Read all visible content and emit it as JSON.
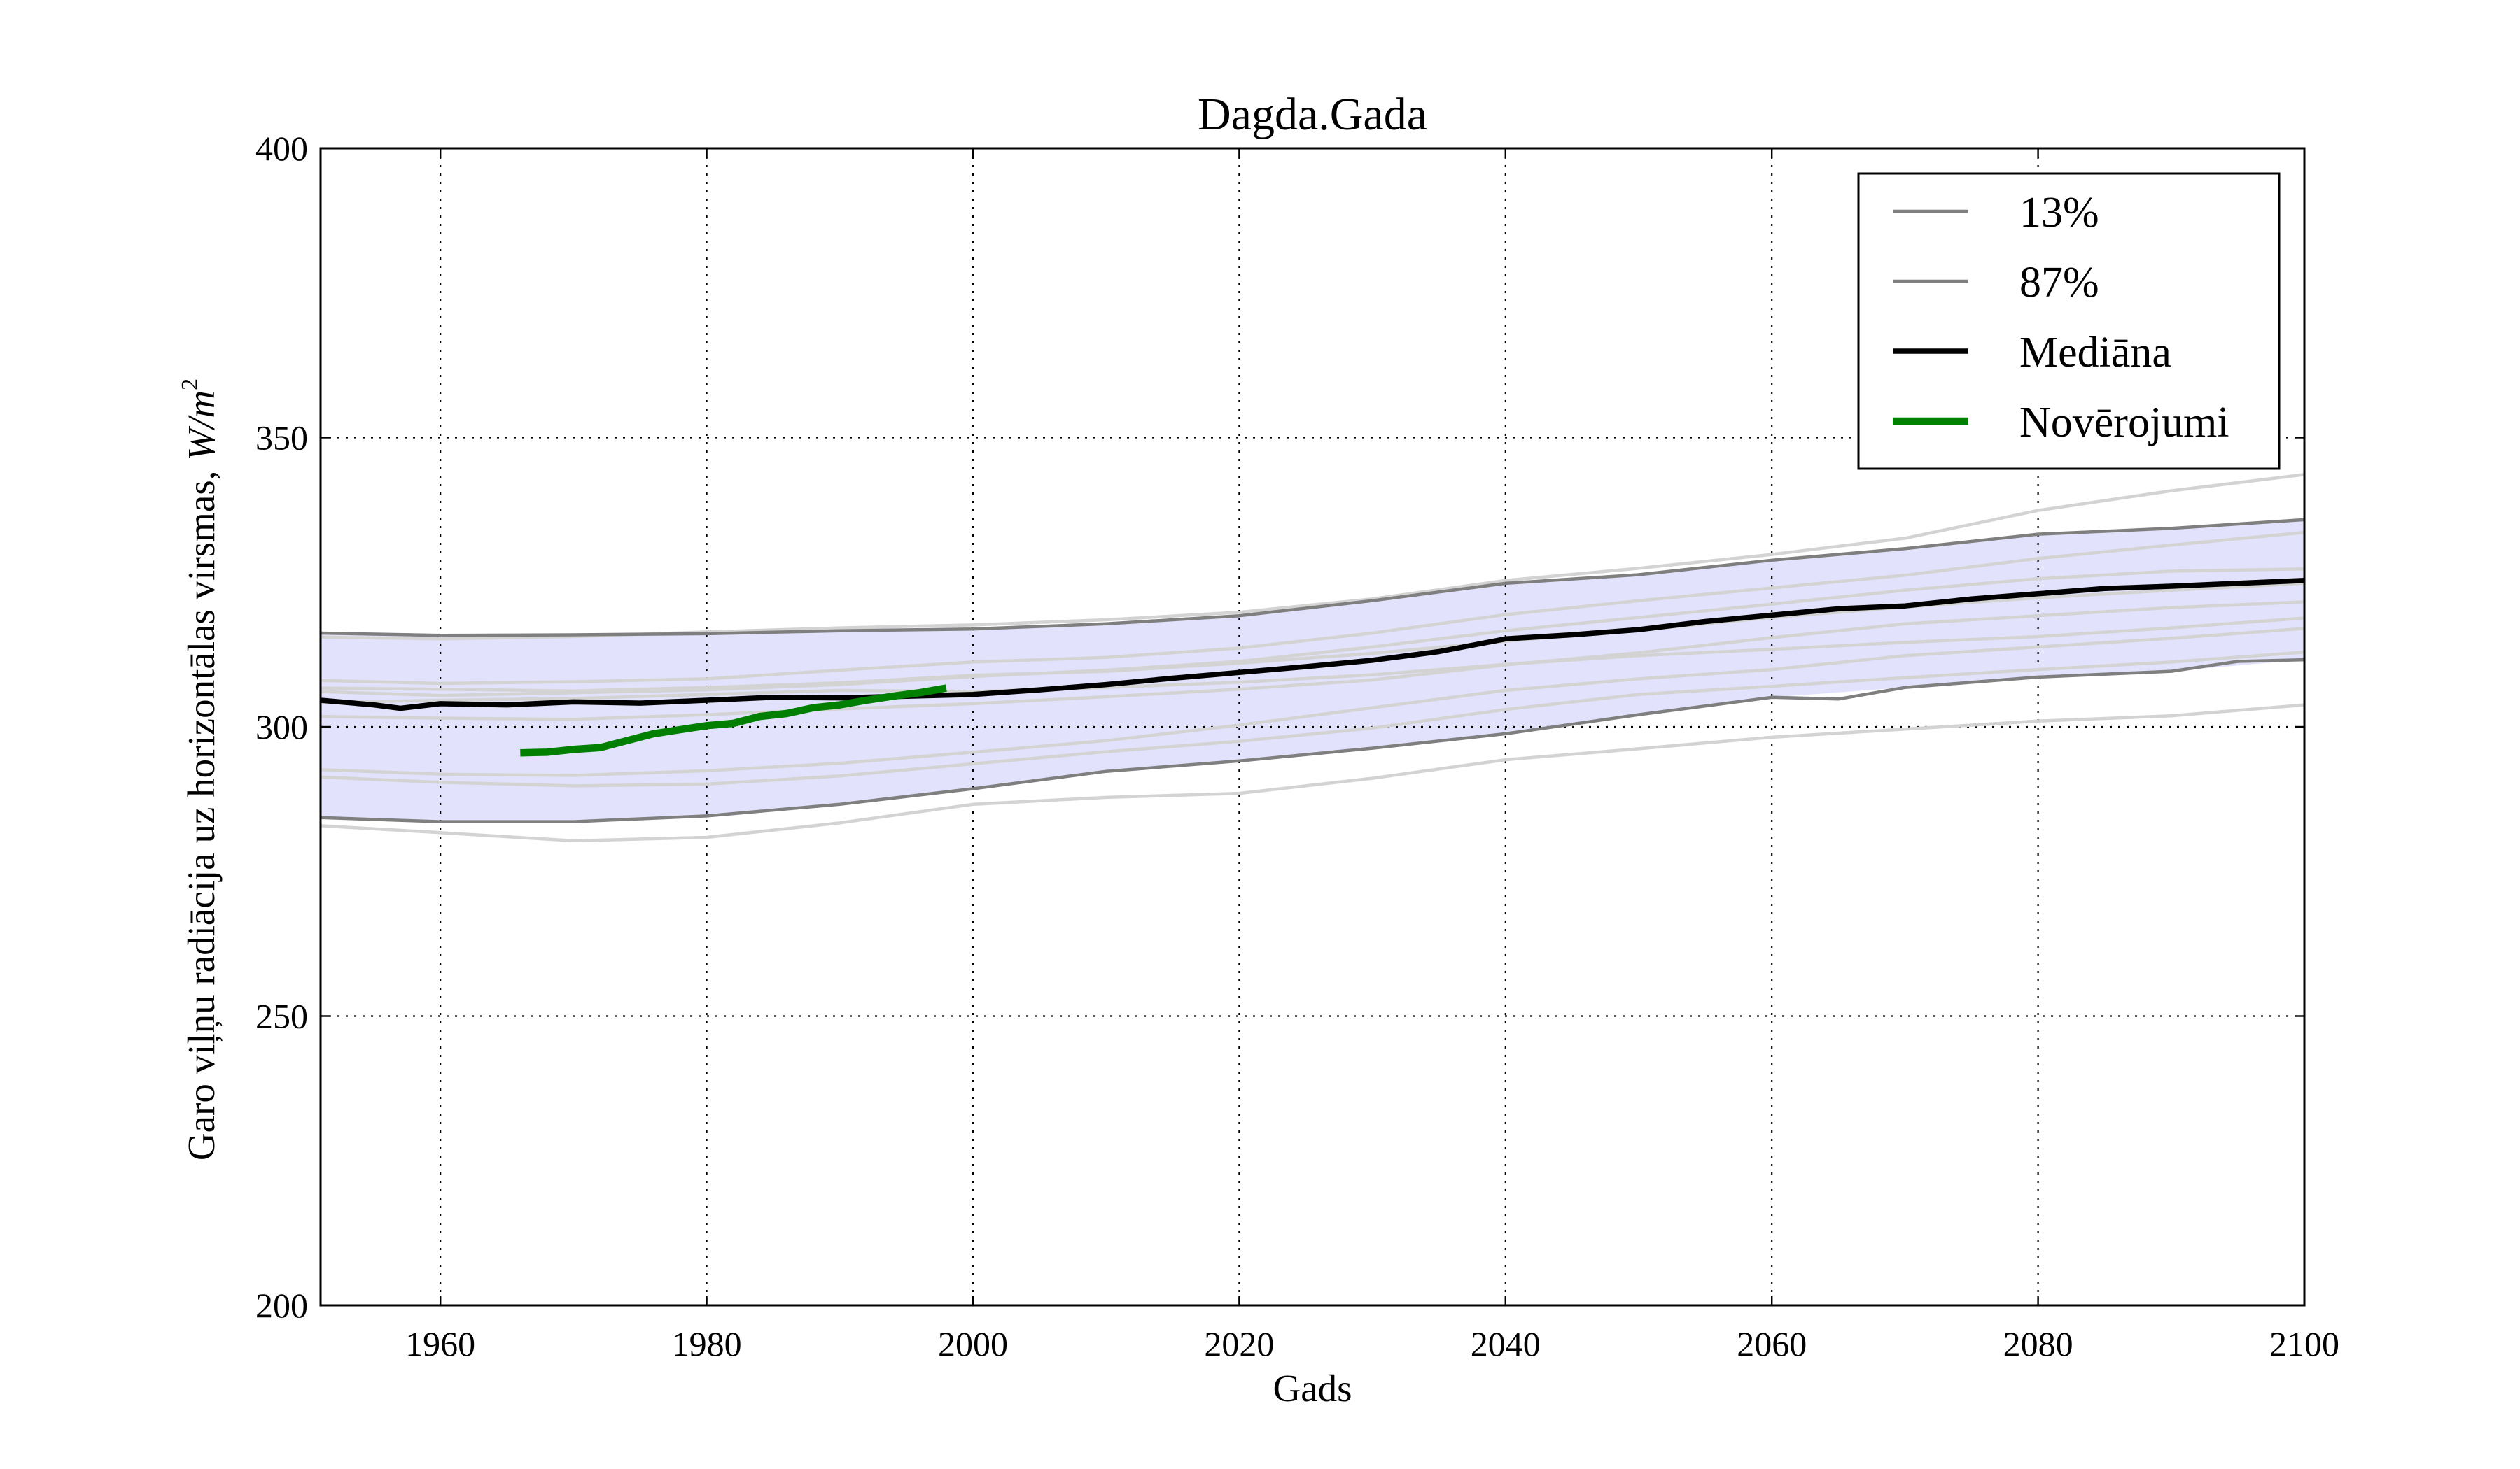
{
  "chart_data": {
    "type": "line",
    "title": "Dagda.Gada",
    "xlabel": "Gads",
    "ylabel": "Garo viļņu radiācija uz horizontālas virsmas, W/m²",
    "ylabel_text": "Garo viļņu radiācija uz horizontālas virsmas, ",
    "ylabel_unit": "W/m",
    "ylabel_exp": "2",
    "xlim": [
      1951,
      2100
    ],
    "ylim": [
      200,
      400
    ],
    "xticks": [
      1960,
      1980,
      2000,
      2020,
      2040,
      2060,
      2080,
      2100
    ],
    "yticks": [
      200,
      250,
      300,
      350,
      400
    ],
    "grid": true,
    "legend_position": "top-right",
    "band": {
      "color": "#e2e2fc",
      "x": [
        1951,
        1960,
        1970,
        1980,
        1990,
        2000,
        2010,
        2020,
        2030,
        2040,
        2050,
        2060,
        2070,
        2080,
        2090,
        2100
      ],
      "upper": [
        316.2,
        315.8,
        315.9,
        316.1,
        316.6,
        316.9,
        317.8,
        319.2,
        321.8,
        324.8,
        326.3,
        328.8,
        330.8,
        333.3,
        334.3,
        335.8
      ],
      "lower": [
        284.3,
        283.6,
        283.6,
        284.6,
        286.6,
        289.3,
        292.3,
        294.1,
        296.3,
        298.8,
        302.1,
        305.1,
        306.8,
        308.6,
        309.6,
        311.6
      ]
    },
    "series": [
      {
        "name": "13%",
        "color": "#7f7f7f",
        "x": [
          1951,
          1960,
          1970,
          1980,
          1990,
          2000,
          2010,
          2020,
          2030,
          2040,
          2050,
          2060,
          2065,
          2070,
          2080,
          2090,
          2095,
          2100
        ],
        "values": [
          284.3,
          283.6,
          283.6,
          284.6,
          286.6,
          289.3,
          292.3,
          294.1,
          296.3,
          298.8,
          302.1,
          305.1,
          304.8,
          306.8,
          308.6,
          309.6,
          311.3,
          311.6
        ]
      },
      {
        "name": "87%",
        "color": "#7f7f7f",
        "x": [
          1951,
          1960,
          1970,
          1980,
          1990,
          2000,
          2010,
          2020,
          2030,
          2040,
          2050,
          2060,
          2070,
          2080,
          2090,
          2100
        ],
        "values": [
          316.2,
          315.8,
          315.9,
          316.1,
          316.6,
          316.9,
          317.8,
          319.2,
          321.8,
          324.8,
          326.3,
          328.8,
          330.8,
          333.3,
          334.3,
          335.8
        ]
      },
      {
        "name": "Mediāna",
        "color": "#000000",
        "x": [
          1951,
          1955,
          1957,
          1960,
          1965,
          1970,
          1975,
          1980,
          1985,
          1990,
          1995,
          2000,
          2005,
          2010,
          2015,
          2020,
          2025,
          2030,
          2035,
          2040,
          2045,
          2050,
          2055,
          2060,
          2065,
          2070,
          2075,
          2080,
          2085,
          2090,
          2095,
          2100
        ],
        "values": [
          304.6,
          303.8,
          303.2,
          304.0,
          303.8,
          304.3,
          304.1,
          304.6,
          305.1,
          305.0,
          305.3,
          305.6,
          306.4,
          307.3,
          308.4,
          309.4,
          310.4,
          311.5,
          313.0,
          315.2,
          315.9,
          316.8,
          318.2,
          319.3,
          320.4,
          320.9,
          322.1,
          323.0,
          323.9,
          324.3,
          324.8,
          325.3
        ]
      },
      {
        "name": "Novērojumi",
        "color": "#007f00",
        "x": [
          1966,
          1968,
          1970,
          1972,
          1974,
          1976,
          1978,
          1980,
          1982,
          1984,
          1986,
          1988,
          1990,
          1992,
          1994,
          1996,
          1998
        ],
        "values": [
          295.5,
          295.6,
          296.1,
          296.4,
          297.6,
          298.8,
          299.5,
          300.2,
          300.6,
          301.8,
          302.3,
          303.3,
          303.8,
          304.6,
          305.3,
          305.9,
          306.7
        ]
      }
    ],
    "ensemble_members": {
      "color": "#d3d3d3",
      "x": [
        1951,
        1960,
        1970,
        1980,
        1990,
        2000,
        2010,
        2020,
        2030,
        2040,
        2050,
        2060,
        2070,
        2080,
        2090,
        2100
      ],
      "members": [
        [
          315.5,
          315.2,
          315.6,
          316.4,
          317.1,
          317.6,
          318.5,
          319.8,
          322.1,
          325.3,
          327.4,
          329.8,
          332.6,
          337.4,
          340.8,
          343.6
        ],
        [
          308.0,
          307.5,
          307.8,
          308.3,
          309.8,
          311.2,
          312.0,
          313.6,
          316.2,
          319.4,
          321.8,
          324.0,
          326.2,
          329.1,
          331.4,
          333.6
        ],
        [
          306.1,
          305.4,
          305.9,
          306.4,
          307.3,
          308.7,
          309.8,
          311.3,
          313.8,
          316.6,
          318.9,
          321.2,
          323.6,
          325.6,
          326.9,
          327.3
        ],
        [
          306.7,
          306.5,
          306.2,
          306.8,
          307.6,
          308.9,
          309.6,
          311.0,
          312.7,
          314.8,
          316.7,
          318.9,
          320.7,
          322.3,
          323.6,
          324.8
        ],
        [
          301.8,
          301.5,
          301.3,
          302.1,
          303.1,
          304.0,
          305.2,
          306.5,
          308.1,
          310.7,
          312.8,
          315.4,
          317.8,
          319.2,
          320.6,
          321.6
        ],
        [
          304.2,
          304.6,
          304.9,
          305.6,
          306.3,
          306.1,
          306.8,
          307.7,
          309.0,
          310.8,
          312.3,
          313.4,
          314.6,
          315.6,
          317.1,
          318.8
        ],
        [
          292.6,
          291.8,
          291.6,
          292.4,
          293.7,
          295.6,
          297.6,
          300.3,
          303.3,
          306.3,
          308.3,
          309.9,
          312.3,
          313.8,
          315.3,
          317.0
        ],
        [
          291.3,
          290.4,
          289.8,
          290.1,
          291.5,
          293.6,
          295.7,
          297.5,
          299.8,
          303.0,
          305.6,
          307.0,
          308.5,
          309.9,
          311.2,
          312.9
        ],
        [
          282.9,
          281.7,
          280.3,
          280.9,
          283.4,
          286.6,
          287.8,
          288.5,
          291.1,
          294.3,
          296.2,
          298.2,
          299.6,
          301.0,
          301.9,
          303.8
        ]
      ]
    }
  }
}
